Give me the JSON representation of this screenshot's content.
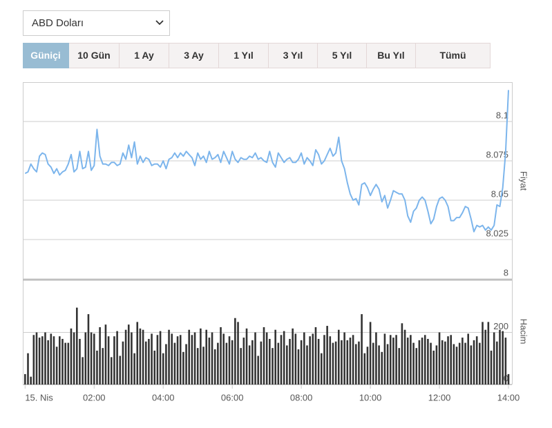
{
  "dropdown": "ABD Doları",
  "tabs": [
    "Güniçi",
    "10 Gün",
    "1 Ay",
    "3 Ay",
    "1 Yıl",
    "3 Yıl",
    "5 Yıl",
    "Bu Yıl",
    "Tümü"
  ],
  "active_tab": 0,
  "chart_data": [
    {
      "type": "line",
      "y_label": "Fiyat",
      "color": "#7cb5ec",
      "grid": true,
      "xlim": [
        -4,
        846
      ],
      "ylim": [
        8,
        8.125
      ],
      "yticks": [
        8,
        8.025,
        8.05,
        8.075,
        8.1
      ],
      "x": [
        0,
        5,
        10,
        15,
        20,
        25,
        30,
        35,
        40,
        45,
        50,
        55,
        60,
        65,
        70,
        75,
        80,
        85,
        90,
        95,
        100,
        105,
        110,
        115,
        120,
        125,
        130,
        135,
        140,
        145,
        150,
        155,
        160,
        165,
        170,
        175,
        180,
        185,
        190,
        195,
        200,
        205,
        210,
        215,
        220,
        225,
        230,
        235,
        240,
        245,
        250,
        255,
        260,
        265,
        270,
        275,
        280,
        285,
        290,
        295,
        300,
        305,
        310,
        315,
        320,
        325,
        330,
        335,
        340,
        345,
        350,
        355,
        360,
        365,
        370,
        375,
        380,
        385,
        390,
        395,
        400,
        405,
        410,
        415,
        420,
        425,
        430,
        435,
        440,
        445,
        450,
        455,
        460,
        465,
        470,
        475,
        480,
        485,
        490,
        495,
        500,
        505,
        510,
        515,
        520,
        525,
        530,
        535,
        540,
        545,
        550,
        555,
        560,
        565,
        570,
        575,
        580,
        585,
        590,
        595,
        600,
        605,
        610,
        615,
        620,
        625,
        630,
        635,
        640,
        645,
        650,
        655,
        660,
        665,
        670,
        675,
        680,
        685,
        690,
        695,
        700,
        705,
        710,
        715,
        720,
        725,
        730,
        735,
        740,
        745,
        750,
        755,
        760,
        765,
        770,
        775,
        780,
        785,
        790,
        795,
        800,
        805,
        810,
        815,
        820,
        825,
        830,
        835,
        840
      ],
      "values": [
        8.067,
        8.068,
        8.073,
        8.07,
        8.068,
        8.078,
        8.08,
        8.079,
        8.073,
        8.071,
        8.067,
        8.07,
        8.066,
        8.068,
        8.069,
        8.073,
        8.079,
        8.068,
        8.07,
        8.081,
        8.07,
        8.071,
        8.081,
        8.069,
        8.072,
        8.095,
        8.078,
        8.073,
        8.073,
        8.072,
        8.074,
        8.074,
        8.072,
        8.073,
        8.08,
        8.076,
        8.085,
        8.077,
        8.087,
        8.073,
        8.078,
        8.074,
        8.077,
        8.076,
        8.072,
        8.073,
        8.073,
        8.071,
        8.075,
        8.07,
        8.076,
        8.077,
        8.08,
        8.077,
        8.08,
        8.078,
        8.081,
        8.079,
        8.077,
        8.072,
        8.08,
        8.076,
        8.078,
        8.074,
        8.081,
        8.076,
        8.077,
        8.079,
        8.074,
        8.081,
        8.077,
        8.073,
        8.081,
        8.076,
        8.074,
        8.077,
        8.076,
        8.076,
        8.078,
        8.077,
        8.08,
        8.076,
        8.077,
        8.075,
        8.074,
        8.081,
        8.074,
        8.071,
        8.08,
        8.077,
        8.074,
        8.076,
        8.077,
        8.074,
        8.074,
        8.076,
        8.08,
        8.073,
        8.077,
        8.075,
        8.072,
        8.082,
        8.079,
        8.073,
        8.075,
        8.079,
        8.083,
        8.078,
        8.08,
        8.09,
        8.075,
        8.07,
        8.061,
        8.054,
        8.05,
        8.051,
        8.047,
        8.06,
        8.061,
        8.058,
        8.053,
        8.057,
        8.06,
        8.057,
        8.049,
        8.053,
        8.045,
        8.05,
        8.056,
        8.055,
        8.054,
        8.054,
        8.05,
        8.04,
        8.036,
        8.043,
        8.045,
        8.05,
        8.052,
        8.05,
        8.043,
        8.035,
        8.038,
        8.046,
        8.051,
        8.052,
        8.05,
        8.046,
        8.037,
        8.037,
        8.039,
        8.039,
        8.042,
        8.046,
        8.045,
        8.038,
        8.03,
        8.034,
        8.033,
        8.034,
        8.031,
        8.033,
        8.031,
        8.034,
        8.047,
        8.046,
        8.058,
        8.08,
        8.12
      ]
    },
    {
      "type": "bar",
      "y_label": "Hacim",
      "color": "#333333",
      "grid": true,
      "xlim": [
        -4,
        846
      ],
      "ylim": [
        0,
        400
      ],
      "yticks": [
        0,
        200
      ],
      "xticks": [
        {
          "value": 0,
          "label": "15. Nis"
        },
        {
          "value": 120,
          "label": "02:00"
        },
        {
          "value": 240,
          "label": "04:00"
        },
        {
          "value": 360,
          "label": "06:00"
        },
        {
          "value": 480,
          "label": "08:00"
        },
        {
          "value": 600,
          "label": "10:00"
        },
        {
          "value": 720,
          "label": "12:00"
        },
        {
          "value": 840,
          "label": "14:00"
        }
      ],
      "x": [
        0,
        5,
        10,
        15,
        20,
        25,
        30,
        35,
        40,
        45,
        50,
        55,
        60,
        65,
        70,
        75,
        80,
        85,
        90,
        95,
        100,
        105,
        110,
        115,
        120,
        125,
        130,
        135,
        140,
        145,
        150,
        155,
        160,
        165,
        170,
        175,
        180,
        185,
        190,
        195,
        200,
        205,
        210,
        215,
        220,
        225,
        230,
        235,
        240,
        245,
        250,
        255,
        260,
        265,
        270,
        275,
        280,
        285,
        290,
        295,
        300,
        305,
        310,
        315,
        320,
        325,
        330,
        335,
        340,
        345,
        350,
        355,
        360,
        365,
        370,
        375,
        380,
        385,
        390,
        395,
        400,
        405,
        410,
        415,
        420,
        425,
        430,
        435,
        440,
        445,
        450,
        455,
        460,
        465,
        470,
        475,
        480,
        485,
        490,
        495,
        500,
        505,
        510,
        515,
        520,
        525,
        530,
        535,
        540,
        545,
        550,
        555,
        560,
        565,
        570,
        575,
        580,
        585,
        590,
        595,
        600,
        605,
        610,
        615,
        620,
        625,
        630,
        635,
        640,
        645,
        650,
        655,
        660,
        665,
        670,
        675,
        680,
        685,
        690,
        695,
        700,
        705,
        710,
        715,
        720,
        725,
        730,
        735,
        740,
        745,
        750,
        755,
        760,
        765,
        770,
        775,
        780,
        785,
        790,
        795,
        800,
        805,
        810,
        815,
        820,
        825,
        830,
        835,
        840
      ],
      "values": [
        40,
        120,
        30,
        190,
        200,
        180,
        185,
        200,
        170,
        195,
        185,
        145,
        185,
        175,
        160,
        160,
        215,
        200,
        295,
        175,
        105,
        200,
        270,
        200,
        195,
        130,
        220,
        140,
        230,
        185,
        105,
        185,
        205,
        110,
        165,
        210,
        230,
        200,
        120,
        240,
        215,
        210,
        165,
        175,
        195,
        130,
        190,
        205,
        120,
        155,
        210,
        195,
        160,
        185,
        190,
        125,
        155,
        210,
        190,
        200,
        140,
        215,
        145,
        210,
        180,
        200,
        135,
        160,
        220,
        195,
        160,
        185,
        170,
        255,
        240,
        140,
        180,
        215,
        150,
        170,
        200,
        110,
        165,
        220,
        200,
        175,
        140,
        210,
        160,
        190,
        205,
        150,
        175,
        215,
        195,
        135,
        170,
        200,
        150,
        185,
        195,
        220,
        175,
        120,
        190,
        225,
        185,
        160,
        165,
        210,
        170,
        200,
        170,
        180,
        190,
        155,
        165,
        270,
        120,
        145,
        240,
        160,
        200,
        150,
        125,
        195,
        155,
        190,
        180,
        190,
        140,
        235,
        210,
        180,
        190,
        160,
        140,
        170,
        180,
        190,
        175,
        160,
        130,
        150,
        200,
        170,
        165,
        185,
        190,
        155,
        145,
        160,
        180,
        160,
        195,
        150,
        170,
        185,
        160,
        240,
        210,
        240,
        130,
        200,
        165,
        210,
        205,
        180,
        40
      ]
    }
  ]
}
